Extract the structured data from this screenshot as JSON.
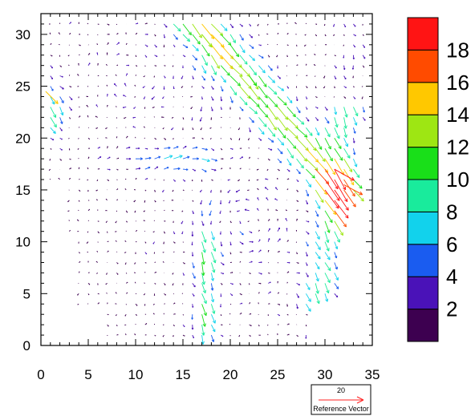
{
  "chart_data": {
    "type": "vector-field",
    "title": "",
    "xlabel": "",
    "ylabel": "",
    "xlim": [
      0,
      35
    ],
    "ylim": [
      0,
      32
    ],
    "x_ticks": [
      0,
      5,
      10,
      15,
      20,
      25,
      30,
      35
    ],
    "y_ticks": [
      0,
      5,
      10,
      15,
      20,
      25,
      30
    ],
    "colorbar": {
      "levels": [
        2,
        4,
        6,
        8,
        10,
        12,
        14,
        16,
        18
      ],
      "colors": [
        "#3d0050",
        "#4a12b8",
        "#1a5cf0",
        "#12d2ec",
        "#19eb9c",
        "#19df19",
        "#9ee613",
        "#ffc800",
        "#ff4b00",
        "#ff1414"
      ]
    },
    "reference_vector": {
      "magnitude_label": "20",
      "label": "Reference Vector"
    },
    "vectors_note_sample": [
      {
        "x": 31,
        "y": 17,
        "u": 16,
        "v": -9
      },
      {
        "x": 32,
        "y": 15.5,
        "u": 15,
        "v": -8
      },
      {
        "x": 0.5,
        "y": 24.5,
        "u": 10,
        "v": -10
      },
      {
        "x": 17,
        "y": 30,
        "u": 8,
        "v": -10
      },
      {
        "x": 22,
        "y": 26,
        "u": 6,
        "v": -8
      }
    ]
  }
}
